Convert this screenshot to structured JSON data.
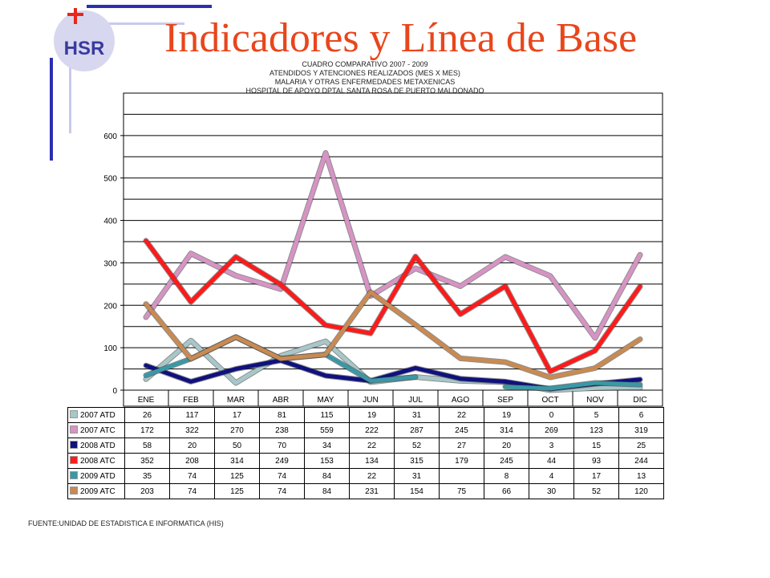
{
  "slide": {
    "title": "Indicadores y Línea de Base",
    "title_color": "#e8461c",
    "logo_text": "HSR",
    "source": "FUENTE:UNIDAD DE ESTADISTICA E INFORMATICA (HIS)",
    "accent_blue": "#2b2fb0",
    "accent_red": "#e8261c"
  },
  "chart_data": {
    "type": "line",
    "title_lines": [
      "CUADRO COMPARATIVO 2007 - 2009",
      "ATENDIDOS Y ATENCIONES  REALIZADOS (MES X MES)",
      "MALARIA Y OTRAS ENFERMEDADES METAXENICAS",
      "HOSPITAL DE APOYO DPTAL SANTA ROSA DE PUERTO MALDONADO"
    ],
    "categories": [
      "ENE",
      "FEB",
      "MAR",
      "ABR",
      "MAY",
      "JUN",
      "JUL",
      "AGO",
      "SEP",
      "OCT",
      "NOV",
      "DIC"
    ],
    "ylim": [
      0,
      700
    ],
    "yticks": [
      0,
      100,
      200,
      300,
      400,
      500,
      600
    ],
    "grid": true,
    "series": [
      {
        "name": "2007 ATD",
        "values": [
          26,
          117,
          17,
          81,
          115,
          19,
          31,
          22,
          19,
          0,
          5,
          6
        ],
        "color": "#a7c7c9",
        "labels": [
          "26",
          "117",
          "17",
          "81",
          "115",
          "19",
          "31",
          "22",
          "19",
          "0",
          "5",
          "6"
        ]
      },
      {
        "name": "2007 ATC",
        "values": [
          172,
          322,
          270,
          238,
          559,
          222,
          287,
          245,
          314,
          269,
          123,
          319
        ],
        "color": "#d793c4",
        "labels": [
          "172",
          "322",
          "270",
          "238",
          "559",
          "222",
          "287",
          "245",
          "314",
          "269",
          "123",
          "319"
        ]
      },
      {
        "name": "2008 ATD",
        "values": [
          58,
          20,
          50,
          70,
          34,
          22,
          52,
          27,
          20,
          3,
          15,
          25
        ],
        "color": "#10107f",
        "labels": [
          "58",
          "20",
          "50",
          "70",
          "34",
          "22",
          "52",
          "27",
          "20",
          "3",
          "15",
          "25"
        ]
      },
      {
        "name": "2008 ATC",
        "values": [
          352,
          208,
          314,
          249,
          153,
          134,
          315,
          179,
          245,
          44,
          93,
          244
        ],
        "color": "#ff1a1a",
        "labels": [
          "352",
          "208",
          "314",
          "249",
          "153",
          "134",
          "315",
          "179",
          "245",
          "44",
          "93",
          "244"
        ]
      },
      {
        "name": "2009 ATD",
        "values": [
          35,
          74,
          125,
          74,
          84,
          22,
          31,
          null,
          8,
          4,
          17,
          13
        ],
        "color": "#3a98a6",
        "labels": [
          "35",
          "74",
          "125",
          "74",
          "84",
          "22",
          "31",
          "",
          "8",
          "4",
          "17",
          "13"
        ]
      },
      {
        "name": "2009 ATC",
        "values": [
          203,
          74,
          125,
          74,
          84,
          231,
          154,
          75,
          66,
          30,
          52,
          120
        ],
        "color": "#c98a52",
        "labels": [
          "203",
          "74",
          "125",
          "74",
          "84",
          "231",
          "154",
          "75",
          "66",
          "30",
          "52",
          "120"
        ]
      }
    ]
  }
}
